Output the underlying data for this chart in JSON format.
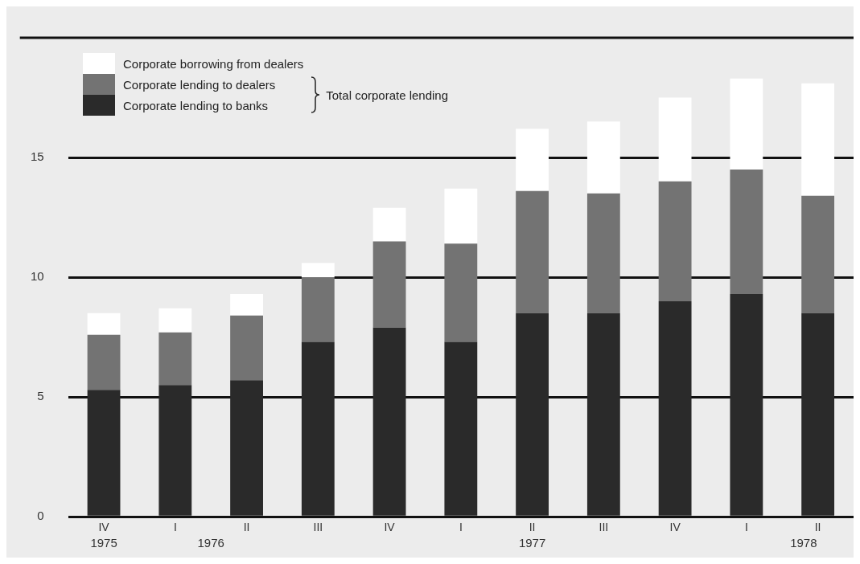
{
  "chart_data": {
    "type": "bar",
    "stacked": true,
    "categories": [
      "IV",
      "I",
      "II",
      "III",
      "IV",
      "I",
      "II",
      "III",
      "IV",
      "I",
      "II"
    ],
    "series": [
      {
        "name": "Corporate lending to banks",
        "color": "#2a2a2a",
        "values": [
          5.3,
          5.5,
          5.7,
          7.3,
          7.9,
          7.3,
          8.5,
          8.5,
          9.0,
          9.3,
          8.5
        ]
      },
      {
        "name": "Corporate lending to dealers",
        "color": "#737373",
        "values": [
          2.3,
          2.2,
          2.7,
          2.7,
          3.6,
          4.1,
          5.1,
          5.0,
          5.0,
          5.2,
          4.9
        ]
      },
      {
        "name": "Corporate borrowing from dealers",
        "color": "#ffffff",
        "values": [
          0.9,
          1.0,
          0.9,
          0.6,
          1.4,
          2.3,
          2.6,
          3.0,
          3.5,
          3.8,
          4.7
        ]
      }
    ],
    "ylim": [
      0,
      20
    ],
    "yticks": [
      0,
      5,
      10,
      15
    ],
    "grid": "y",
    "legend": "top left",
    "annotations": [
      "Total corporate lending",
      "1975",
      "1976",
      "1977",
      "1978"
    ]
  }
}
